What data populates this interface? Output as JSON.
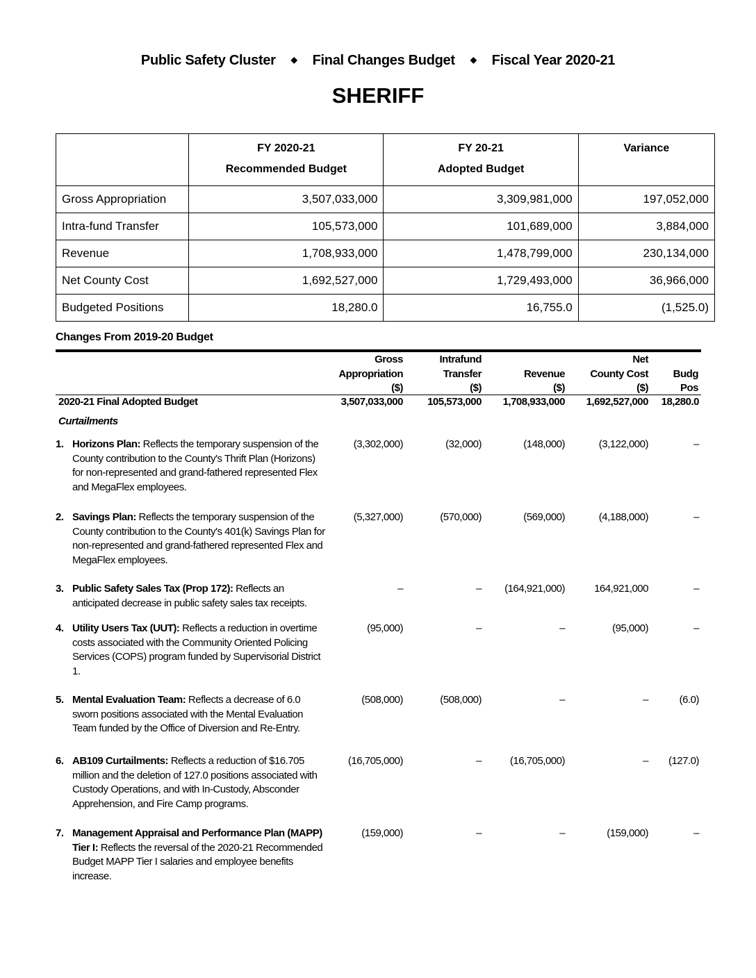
{
  "header": {
    "cluster": "Public Safety Cluster",
    "budget": "Final Changes Budget",
    "year": "Fiscal Year 2020-21",
    "separator": "◆"
  },
  "title": "SHERIFF",
  "summary": {
    "headers": [
      [
        "",
        ""
      ],
      [
        "FY 2020-21",
        "Recommended Budget"
      ],
      [
        "FY 20-21",
        "Adopted Budget"
      ],
      [
        "Variance",
        ""
      ]
    ],
    "rows": [
      [
        "Gross Appropriation",
        "3,507,033,000",
        "3,309,981,000",
        "197,052,000"
      ],
      [
        "Intra-fund Transfer",
        "105,573,000",
        "101,689,000",
        "3,884,000"
      ],
      [
        "Revenue",
        "1,708,933,000",
        "1,478,799,000",
        "230,134,000"
      ],
      [
        "Net County Cost",
        "1,692,527,000",
        "1,729,493,000",
        "36,966,000"
      ],
      [
        "Budgeted Positions",
        "18,280.0",
        "16,755.0",
        "(1,525.0)"
      ]
    ]
  },
  "changes": {
    "heading": "Changes From 2019-20 Budget",
    "columns": [
      [
        "Gross",
        "Appropriation",
        "($)"
      ],
      [
        "Intrafund",
        "Transfer",
        "($)"
      ],
      [
        "",
        "Revenue",
        "($)"
      ],
      [
        "Net",
        "County Cost",
        "($)"
      ],
      [
        "",
        "Budg",
        "Pos"
      ]
    ],
    "base": {
      "label": "2020-21 Final Adopted Budget",
      "values": [
        "3,507,033,000",
        "105,573,000",
        "1,708,933,000",
        "1,692,527,000",
        "18,280.0"
      ]
    },
    "section": "Curtailments",
    "items": [
      {
        "num": "1.",
        "title": "Horizons Plan:",
        "text": " Reflects the temporary suspension of the County contribution to the County's Thrift Plan (Horizons) for non-represented and grand-fathered represented Flex and MegaFlex employees.",
        "values": [
          "(3,302,000)",
          "(32,000)",
          "(148,000)",
          "(3,122,000)",
          "–"
        ]
      },
      {
        "num": "2.",
        "title": "Savings Plan:",
        "text": " Reflects the temporary suspension of the County contribution to the County's 401(k) Savings Plan for non-represented and grand-fathered represented Flex and MegaFlex employees.",
        "values": [
          "(5,327,000)",
          "(570,000)",
          "(569,000)",
          "(4,188,000)",
          "–"
        ]
      },
      {
        "num": "3.",
        "title": "Public Safety Sales Tax (Prop 172):",
        "text": " Reflects an anticipated decrease in public safety sales tax receipts.",
        "values": [
          "–",
          "–",
          "(164,921,000)",
          "164,921,000",
          "–"
        ]
      },
      {
        "num": "4.",
        "title": "Utility Users Tax (UUT):",
        "text": " Reflects a reduction in overtime costs associated with the Community Oriented Policing Services (COPS) program funded by Supervisorial District 1.",
        "values": [
          "(95,000)",
          "–",
          "–",
          "(95,000)",
          "–"
        ]
      },
      {
        "num": "5.",
        "title": "Mental Evaluation Team:",
        "text": " Reflects a decrease of 6.0 sworn positions associated with the Mental Evaluation Team funded by the Office of Diversion and Re-Entry.",
        "values": [
          "(508,000)",
          "(508,000)",
          "–",
          "–",
          "(6.0)"
        ]
      },
      {
        "num": "6.",
        "title": "AB109 Curtailments:",
        "text": " Reflects a reduction of $16.705 million and the deletion of 127.0 positions associated with Custody Operations, and with In-Custody, Absconder Apprehension, and Fire Camp programs.",
        "values": [
          "(16,705,000)",
          "–",
          "(16,705,000)",
          "–",
          "(127.0)"
        ]
      },
      {
        "num": "7.",
        "title": "Management Appraisal and Performance Plan (MAPP) Tier I:",
        "text": " Reflects the reversal of the 2020-21 Recommended Budget MAPP Tier I salaries and employee benefits increase.",
        "values": [
          "(159,000)",
          "–",
          "–",
          "(159,000)",
          "–"
        ]
      }
    ]
  }
}
